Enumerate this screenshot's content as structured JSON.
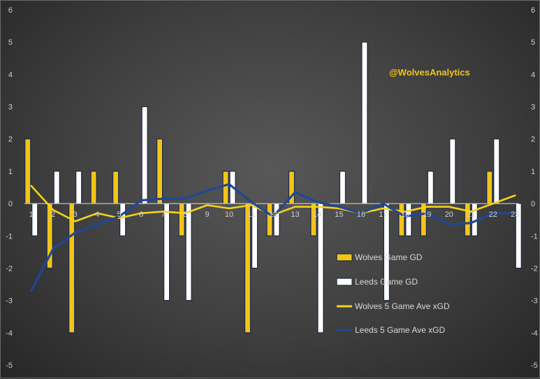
{
  "chart_data": {
    "type": "bar",
    "categories": [
      "1",
      "2",
      "3",
      "4",
      "5",
      "6",
      "7",
      "8",
      "9",
      "10",
      "11",
      "12",
      "13",
      "14",
      "15",
      "16",
      "17",
      "18",
      "19",
      "20",
      "21",
      "22",
      "23"
    ],
    "series": [
      {
        "name": "Wolves Game GD",
        "kind": "bar",
        "values": [
          2,
          -2,
          -4,
          1,
          1,
          0,
          2,
          -1,
          0,
          1,
          -4,
          -1,
          1,
          -1,
          0,
          0,
          0,
          -1,
          -1,
          0,
          -1,
          1,
          0
        ]
      },
      {
        "name": "Leeds Game GD",
        "kind": "bar",
        "values": [
          -1,
          1,
          1,
          0,
          -1,
          3,
          -3,
          -3,
          0,
          1,
          -2,
          -1,
          0,
          -4,
          1,
          5,
          -3,
          -1,
          1,
          2,
          -1,
          2,
          -2
        ]
      },
      {
        "name": "Wolves 5 Game Ave xGD",
        "kind": "line",
        "values": [
          0.55,
          -0.2,
          -0.55,
          -0.3,
          -0.45,
          -0.3,
          -0.25,
          -0.3,
          -0.05,
          -0.15,
          -0.05,
          -0.35,
          -0.1,
          -0.1,
          -0.15,
          -0.3,
          -0.15,
          -0.25,
          -0.1,
          -0.1,
          -0.25,
          0,
          0.25
        ]
      },
      {
        "name": "Leeds 5 Game Ave xGD",
        "kind": "line",
        "values": [
          -2.7,
          -1.4,
          -0.9,
          -0.65,
          -0.4,
          0.1,
          0.15,
          0.15,
          0.4,
          0.6,
          0.05,
          -0.4,
          0.35,
          0.05,
          -0.1,
          -0.3,
          0,
          -0.4,
          -0.3,
          -0.65,
          -0.6,
          -0.3,
          -0.3
        ]
      }
    ],
    "y_ticks": [
      "-5",
      "-4",
      "-3",
      "-2",
      "-1",
      "0",
      "1",
      "2",
      "3",
      "4",
      "5",
      "6"
    ],
    "ylim": [
      -5,
      6
    ],
    "secondary_y_axis": true,
    "grid": false,
    "legend_position": "bottom-center",
    "colors": {
      "wolves_bar": "#f2c418",
      "leeds_bar": "#ffffff",
      "wolves_line": "#f5d21a",
      "leeds_line": "#1f4796",
      "bar_outline": "#1b2a4a",
      "axis_line": "#e0e0e0"
    },
    "annotations": [
      "@WolvesAnalytics"
    ]
  }
}
